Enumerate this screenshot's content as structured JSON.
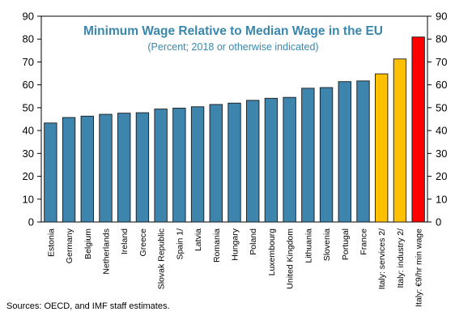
{
  "chart_data": {
    "type": "bar",
    "title": "Minimum Wage Relative to Median Wage in the EU",
    "subtitle": "(Percent; 2018 or otherwise indicated)",
    "xlabel": "",
    "ylabel": "",
    "ylim": [
      0,
      90
    ],
    "yticks": [
      0,
      10,
      20,
      30,
      40,
      50,
      60,
      70,
      80,
      90
    ],
    "grid": false,
    "legend": "none",
    "categories": [
      "Estonia",
      "Germany",
      "Belgium",
      "Netherlands",
      "Ireland",
      "Greece",
      "Slovak Republic",
      "Spain 1/",
      "Latvia",
      "Romania",
      "Hungary",
      "Poland",
      "Luxembourg",
      "United Kingdom",
      "Lithuania",
      "Slovenia",
      "Portugal",
      "France",
      "Italy: services 2/",
      "Italy: industry 2/",
      "Italy: €9/hr min wage"
    ],
    "values": [
      43.3,
      45.7,
      46.3,
      47.1,
      47.6,
      47.8,
      49.4,
      49.8,
      50.4,
      51.4,
      52.0,
      53.2,
      54.1,
      54.5,
      58.5,
      58.8,
      61.4,
      61.7,
      64.8,
      71.3,
      80.9
    ],
    "bar_colors": [
      "#3d85ad",
      "#3d85ad",
      "#3d85ad",
      "#3d85ad",
      "#3d85ad",
      "#3d85ad",
      "#3d85ad",
      "#3d85ad",
      "#3d85ad",
      "#3d85ad",
      "#3d85ad",
      "#3d85ad",
      "#3d85ad",
      "#3d85ad",
      "#3d85ad",
      "#3d85ad",
      "#3d85ad",
      "#3d85ad",
      "#ffc000",
      "#ffc000",
      "#ff0000"
    ]
  },
  "source": "Sources: OECD, and IMF staff estimates."
}
